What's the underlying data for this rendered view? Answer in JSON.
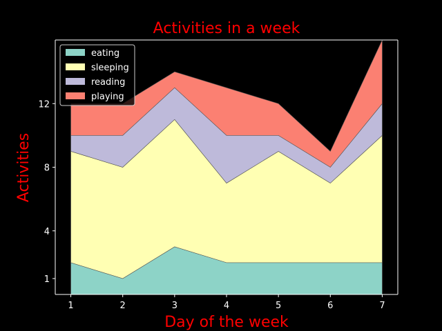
{
  "chart_data": {
    "type": "area",
    "stacked": true,
    "title": "Activities in a week",
    "xlabel": "Day of the week",
    "ylabel": "Activities",
    "x": [
      1,
      2,
      3,
      4,
      5,
      6,
      7
    ],
    "xticks": [
      "1",
      "2",
      "3",
      "4",
      "5",
      "6",
      "7"
    ],
    "yticks": [
      1,
      4,
      8,
      12
    ],
    "ytick_labels": [
      "1",
      "4",
      "8",
      "12"
    ],
    "xlim": [
      0.7,
      7.3
    ],
    "ylim": [
      0,
      16
    ],
    "grid": false,
    "legend_position": "top-left",
    "series": [
      {
        "name": "eating",
        "values": [
          2,
          1,
          3,
          2,
          2,
          2,
          2
        ],
        "color": "#8dd3c7"
      },
      {
        "name": "sleeping",
        "values": [
          7,
          7,
          8,
          5,
          7,
          5,
          8
        ],
        "color": "#ffffb3"
      },
      {
        "name": "reading",
        "values": [
          1,
          2,
          2,
          3,
          1,
          1,
          2
        ],
        "color": "#bebada"
      },
      {
        "name": "playing",
        "values": [
          2,
          2,
          1,
          3,
          2,
          1,
          4
        ],
        "color": "#fb8072"
      }
    ]
  },
  "colors": {
    "background": "#000000",
    "foreground": "#ffffff",
    "title": "#ff0000"
  }
}
